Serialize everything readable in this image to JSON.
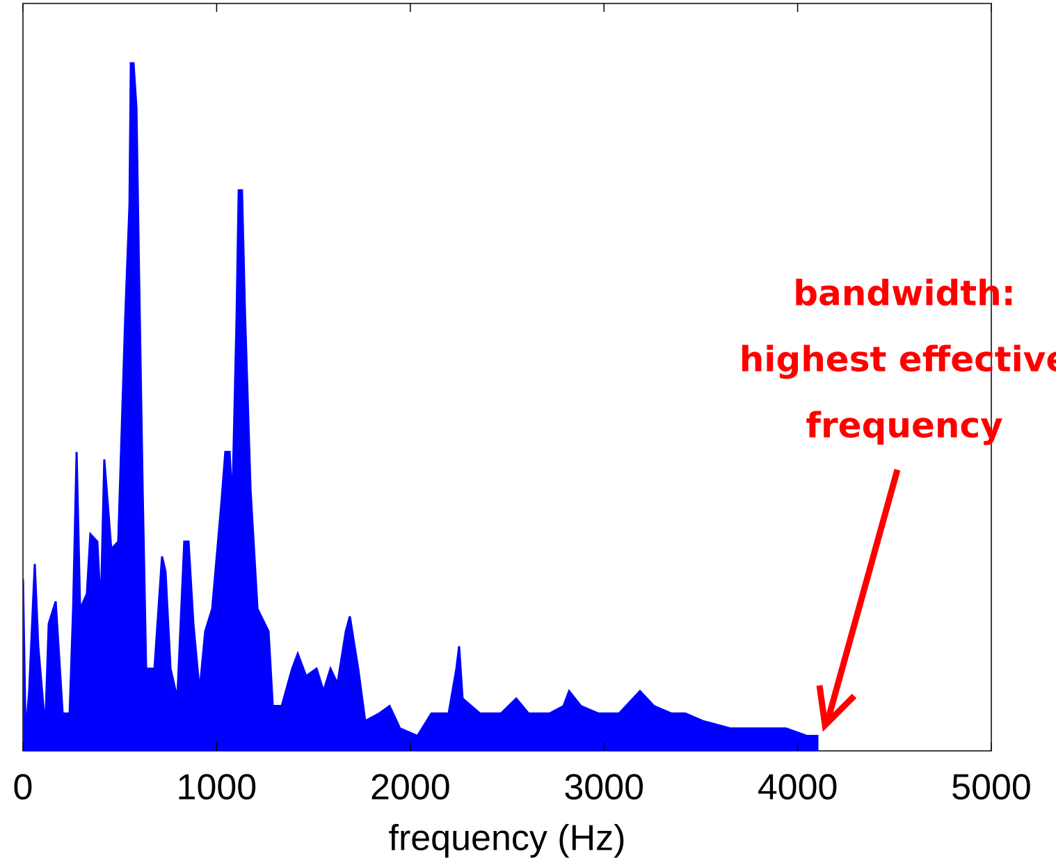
{
  "chart_data": {
    "type": "area",
    "xlabel": "frequency (Hz)",
    "annotation": [
      "bandwidth:",
      "highest effective",
      "frequency"
    ],
    "x": [
      0,
      14,
      32,
      61,
      79,
      115,
      133,
      169,
      205,
      241,
      259,
      277,
      295,
      330,
      348,
      384,
      402,
      420,
      438,
      456,
      492,
      528,
      550,
      557,
      571,
      586,
      600,
      618,
      636,
      679,
      718,
      736,
      762,
      797,
      833,
      855,
      880,
      912,
      941,
      977,
      1024,
      1045,
      1067,
      1081,
      1103,
      1114,
      1131,
      1146,
      1175,
      1211,
      1268,
      1290,
      1336,
      1390,
      1419,
      1462,
      1516,
      1552,
      1588,
      1624,
      1667,
      1688,
      1706,
      1731,
      1767,
      1839,
      1893,
      1947,
      2037,
      2109,
      2198,
      2238,
      2252,
      2270,
      2360,
      2468,
      2547,
      2611,
      2719,
      2791,
      2820,
      2881,
      2971,
      3078,
      3186,
      3258,
      3348,
      3420,
      3510,
      3653,
      3833,
      3940,
      4048,
      4102
    ],
    "values": [
      0.23,
      0.02,
      0.08,
      0.25,
      0.14,
      0.03,
      0.17,
      0.2,
      0.05,
      0.05,
      0.19,
      0.4,
      0.19,
      0.21,
      0.29,
      0.28,
      0.19,
      0.39,
      0.33,
      0.27,
      0.28,
      0.58,
      0.73,
      0.92,
      0.92,
      0.86,
      0.63,
      0.35,
      0.11,
      0.11,
      0.26,
      0.24,
      0.11,
      0.07,
      0.28,
      0.28,
      0.17,
      0.08,
      0.16,
      0.19,
      0.33,
      0.4,
      0.4,
      0.33,
      0.58,
      0.75,
      0.75,
      0.59,
      0.35,
      0.19,
      0.16,
      0.06,
      0.06,
      0.11,
      0.13,
      0.1,
      0.11,
      0.08,
      0.11,
      0.09,
      0.16,
      0.18,
      0.15,
      0.11,
      0.04,
      0.05,
      0.06,
      0.03,
      0.02,
      0.05,
      0.05,
      0.11,
      0.14,
      0.07,
      0.05,
      0.05,
      0.07,
      0.05,
      0.05,
      0.06,
      0.08,
      0.06,
      0.05,
      0.05,
      0.08,
      0.06,
      0.05,
      0.05,
      0.04,
      0.03,
      0.03,
      0.03,
      0.02,
      0.02
    ],
    "color": "#0000ff",
    "xlim": [
      0,
      5000
    ],
    "xticks": [
      0,
      1000,
      2000,
      3000,
      4000,
      5000
    ],
    "ylim": [
      0,
      1
    ]
  }
}
